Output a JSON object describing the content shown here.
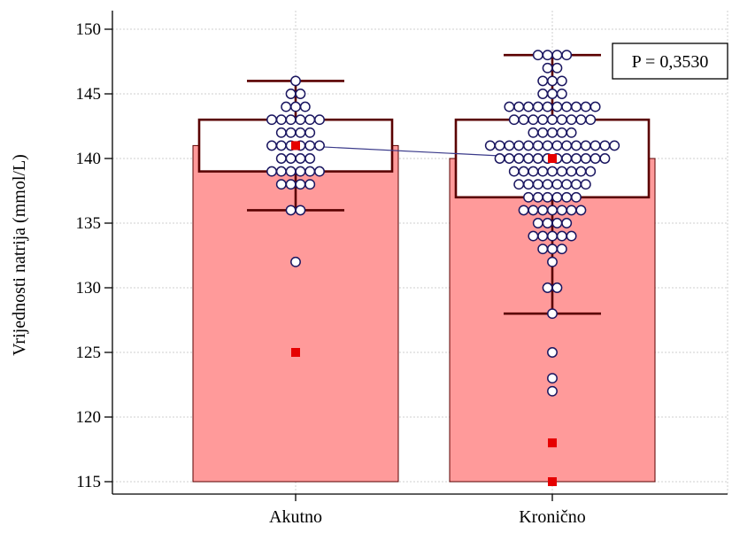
{
  "chart_data": {
    "type": "bar",
    "ylabel": "Vrijednosti natrija (mmol/L)",
    "ylim": [
      115,
      150
    ],
    "yticks": [
      115,
      120,
      125,
      130,
      135,
      140,
      145,
      150
    ],
    "categories": [
      "Akutno",
      "Kronično"
    ],
    "annotation": "P = 0,3530",
    "grid": true,
    "colors": {
      "bar_fill": "#ff9a9a",
      "box_edge": "#5a0000",
      "dot_fill": "#ffffff",
      "dot_edge": "#1a1660",
      "outlier": "#e60000",
      "mean_line": "#3a3a8a",
      "grid": "#cfcfcf"
    },
    "groups": [
      {
        "category": "Akutno",
        "bar_value": 141,
        "box": {
          "q1": 139,
          "median": 141,
          "q3": 143
        },
        "whiskers": [
          136,
          146
        ],
        "marker_value": 141,
        "outliers": [
          125
        ],
        "points": [
          {
            "y": 146,
            "n": 1
          },
          {
            "y": 145,
            "n": 2
          },
          {
            "y": 144,
            "n": 3
          },
          {
            "y": 143,
            "n": 6
          },
          {
            "y": 142,
            "n": 4
          },
          {
            "y": 141,
            "n": 6
          },
          {
            "y": 140,
            "n": 4
          },
          {
            "y": 139,
            "n": 6
          },
          {
            "y": 138,
            "n": 4
          },
          {
            "y": 136,
            "n": 2
          },
          {
            "y": 132,
            "n": 1
          }
        ]
      },
      {
        "category": "Kronično",
        "bar_value": 140,
        "box": {
          "q1": 137,
          "median": 140,
          "q3": 143
        },
        "whiskers": [
          128,
          148
        ],
        "marker_value": 140,
        "outliers": [
          118,
          115
        ],
        "points": [
          {
            "y": 148,
            "n": 4
          },
          {
            "y": 147,
            "n": 2
          },
          {
            "y": 146,
            "n": 3
          },
          {
            "y": 145,
            "n": 3
          },
          {
            "y": 144,
            "n": 10
          },
          {
            "y": 143,
            "n": 9
          },
          {
            "y": 142,
            "n": 5
          },
          {
            "y": 141,
            "n": 14
          },
          {
            "y": 140,
            "n": 12
          },
          {
            "y": 139,
            "n": 9
          },
          {
            "y": 138,
            "n": 8
          },
          {
            "y": 137,
            "n": 6
          },
          {
            "y": 136,
            "n": 7
          },
          {
            "y": 135,
            "n": 4
          },
          {
            "y": 134,
            "n": 5
          },
          {
            "y": 133,
            "n": 3
          },
          {
            "y": 132,
            "n": 1
          },
          {
            "y": 130,
            "n": 2
          },
          {
            "y": 128,
            "n": 1
          },
          {
            "y": 125,
            "n": 1
          },
          {
            "y": 123,
            "n": 1
          },
          {
            "y": 122,
            "n": 1
          }
        ]
      }
    ]
  }
}
